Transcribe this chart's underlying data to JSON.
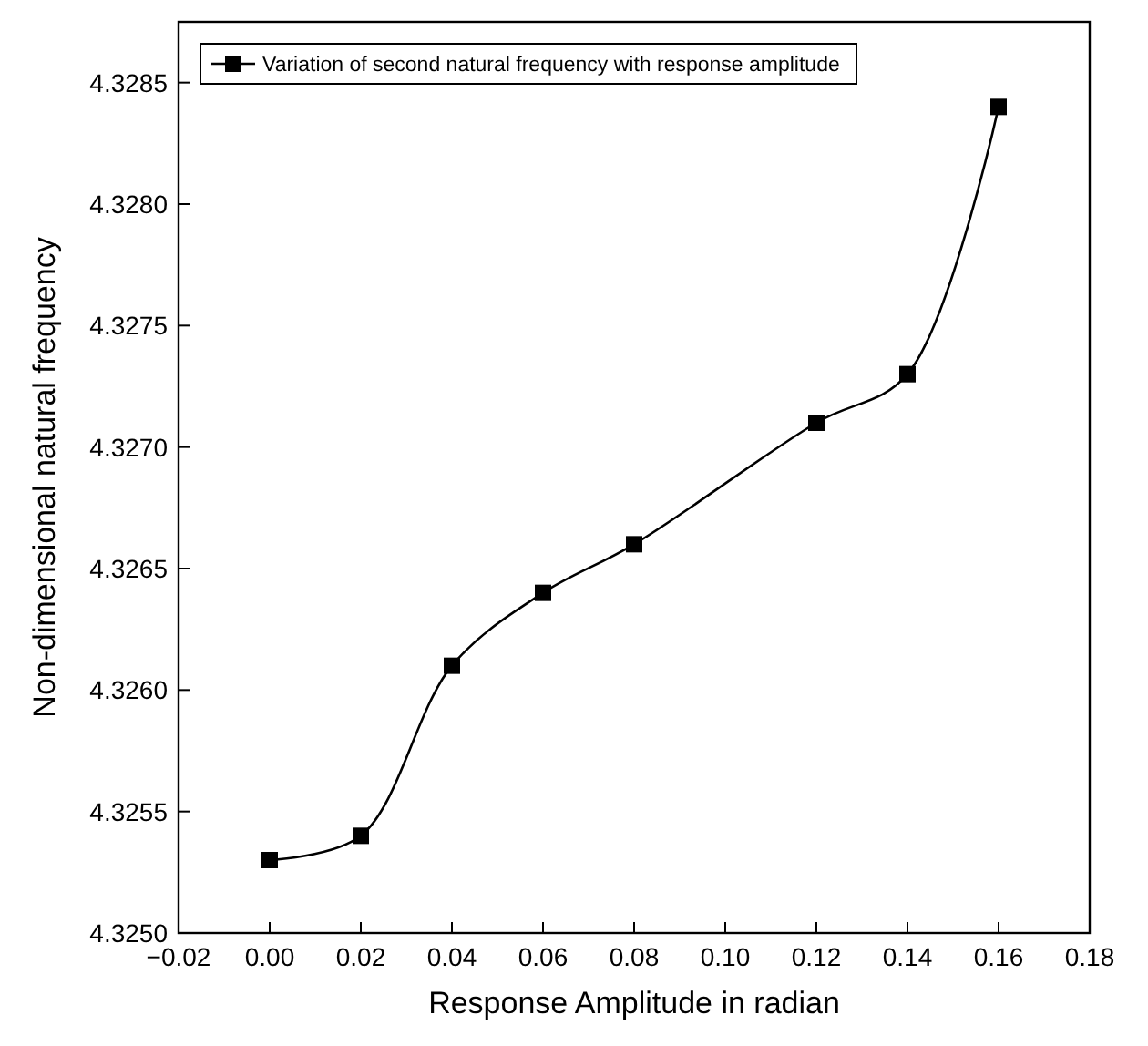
{
  "chart_data": {
    "type": "line",
    "xlabel": "Response Amplitude in radian",
    "ylabel": "Non-dimensional natural frequency",
    "x": [
      0,
      0.02,
      0.04,
      0.06,
      0.08,
      0.12,
      0.14,
      0.16
    ],
    "series": [
      {
        "name": "Variation of second natural frequency with response amplitude",
        "color": "#000000",
        "values": [
          4.3253,
          4.3254,
          4.3261,
          4.3264,
          4.3266,
          4.3271,
          4.3273,
          4.3284
        ]
      }
    ],
    "xlim": [
      -0.02,
      0.18
    ],
    "xticks": [
      {
        "value": -0.02,
        "label": "−0.02"
      },
      {
        "value": 0,
        "label": "0.00"
      },
      {
        "value": 0.02,
        "label": "0.02"
      },
      {
        "value": 0.04,
        "label": "0.04"
      },
      {
        "value": 0.06,
        "label": "0.06"
      },
      {
        "value": 0.08,
        "label": "0.08"
      },
      {
        "value": 0.1,
        "label": "0.10"
      },
      {
        "value": 0.12,
        "label": "0.12"
      },
      {
        "value": 0.14,
        "label": "0.14"
      },
      {
        "value": 0.16,
        "label": "0.16"
      },
      {
        "value": 0.18,
        "label": "0.18"
      }
    ],
    "ylim": [
      4.325,
      4.32875
    ],
    "yticks": [
      {
        "value": 4.325,
        "label": "4.3250"
      },
      {
        "value": 4.3255,
        "label": "4.3255"
      },
      {
        "value": 4.326,
        "label": "4.3260"
      },
      {
        "value": 4.3265,
        "label": "4.3265"
      },
      {
        "value": 4.327,
        "label": "4.3270"
      },
      {
        "value": 4.3275,
        "label": "4.3275"
      },
      {
        "value": 4.328,
        "label": "4.3280"
      },
      {
        "value": 4.3285,
        "label": "4.3285"
      }
    ],
    "marker": "square",
    "line_style": "solid",
    "legend": "top left",
    "grid": false
  }
}
